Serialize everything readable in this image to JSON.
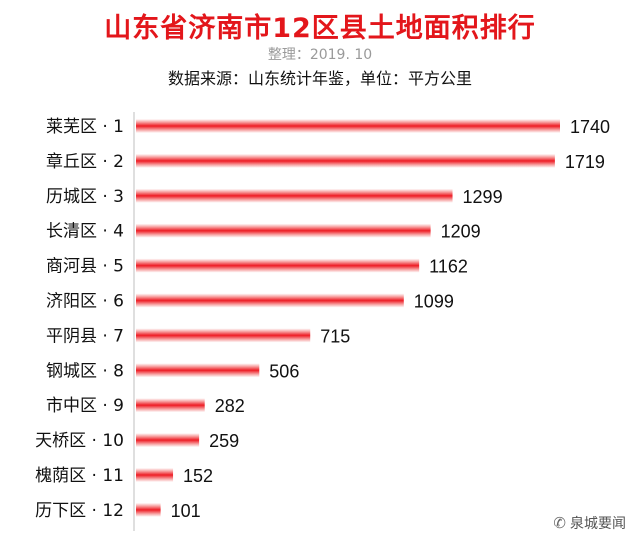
{
  "title": "山东省济南市12区县土地面积排行",
  "subtitle": "整理：2019. 10",
  "source_line": "数据来源：山东统计年鉴，单位：平方公里",
  "watermark": {
    "icon": "wechat-icon",
    "text": "泉城要闻"
  },
  "colors": {
    "bar": "#ee1c24",
    "title": "#e3161b"
  },
  "chart_data": {
    "type": "bar",
    "orientation": "horizontal",
    "title": "山东省济南市12区县土地面积排行",
    "categories": [
      "莱芜区 · 1",
      "章丘区 · 2",
      "历城区 · 3",
      "长清区 · 4",
      "商河县 · 5",
      "济阳区 · 6",
      "平阴县 · 7",
      "钢城区 · 8",
      "市中区 · 9",
      "天桥区 · 10",
      "槐荫区 · 11",
      "历下区 · 12"
    ],
    "values": [
      1740,
      1719,
      1299,
      1209,
      1162,
      1099,
      715,
      506,
      282,
      259,
      152,
      101
    ],
    "data_labels": [
      "1740",
      "1719",
      "1299",
      "1209",
      "1162",
      "1099",
      "715",
      "506",
      "282",
      "259",
      "152",
      "101"
    ],
    "xlim": [
      0,
      1740
    ],
    "grid": false,
    "legend": "none"
  }
}
